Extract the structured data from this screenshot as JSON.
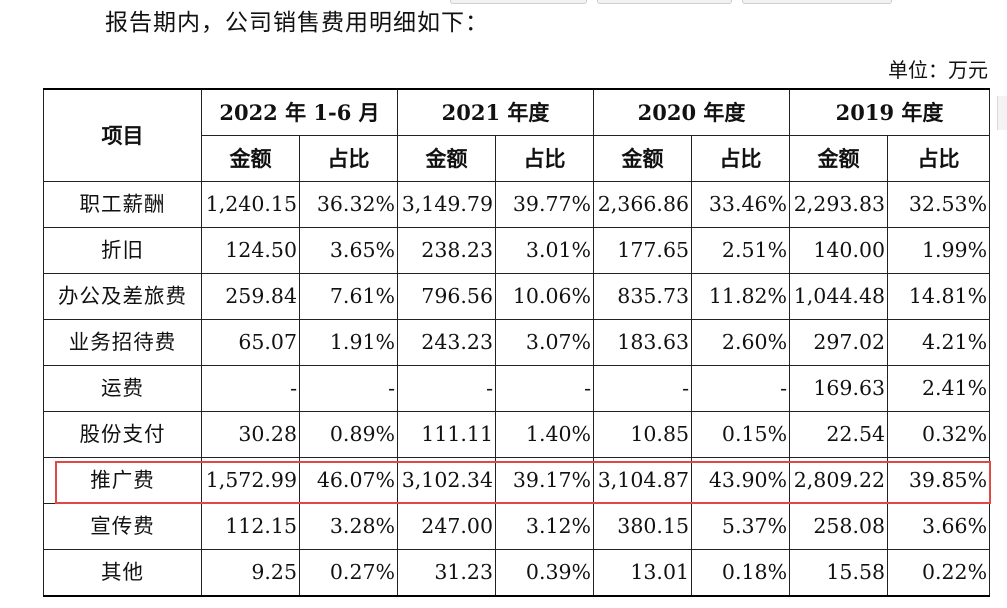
{
  "intro_text": "报告期内，公司销售费用明细如下：",
  "unit_label": "单位：万元",
  "header": {
    "item_label": "项目",
    "periods": [
      "2022 年 1-6 月",
      "2021 年度",
      "2020 年度",
      "2019 年度"
    ],
    "amount_label": "金额",
    "ratio_label": "占比"
  },
  "rows": [
    {
      "name": "职工薪酬",
      "cells": [
        "1,240.15",
        "36.32%",
        "3,149.79",
        "39.77%",
        "2,366.86",
        "33.46%",
        "2,293.83",
        "32.53%"
      ]
    },
    {
      "name": "折旧",
      "cells": [
        "124.50",
        "3.65%",
        "238.23",
        "3.01%",
        "177.65",
        "2.51%",
        "140.00",
        "1.99%"
      ]
    },
    {
      "name": "办公及差旅费",
      "cells": [
        "259.84",
        "7.61%",
        "796.56",
        "10.06%",
        "835.73",
        "11.82%",
        "1,044.48",
        "14.81%"
      ]
    },
    {
      "name": "业务招待费",
      "cells": [
        "65.07",
        "1.91%",
        "243.23",
        "3.07%",
        "183.63",
        "2.60%",
        "297.02",
        "4.21%"
      ]
    },
    {
      "name": "运费",
      "cells": [
        "-",
        "-",
        "-",
        "-",
        "-",
        "-",
        "169.63",
        "2.41%"
      ]
    },
    {
      "name": "股份支付",
      "cells": [
        "30.28",
        "0.89%",
        "111.11",
        "1.40%",
        "10.85",
        "0.15%",
        "22.54",
        "0.32%"
      ]
    },
    {
      "name": "推广费",
      "cells": [
        "1,572.99",
        "46.07%",
        "3,102.34",
        "39.17%",
        "3,104.87",
        "43.90%",
        "2,809.22",
        "39.85%"
      ]
    },
    {
      "name": "宣传费",
      "cells": [
        "112.15",
        "3.28%",
        "247.00",
        "3.12%",
        "380.15",
        "5.37%",
        "258.08",
        "3.66%"
      ]
    },
    {
      "name": "其他",
      "cells": [
        "9.25",
        "0.27%",
        "31.23",
        "0.39%",
        "13.01",
        "0.18%",
        "15.58",
        "0.22%"
      ]
    }
  ],
  "highlight_color": "#e04848"
}
